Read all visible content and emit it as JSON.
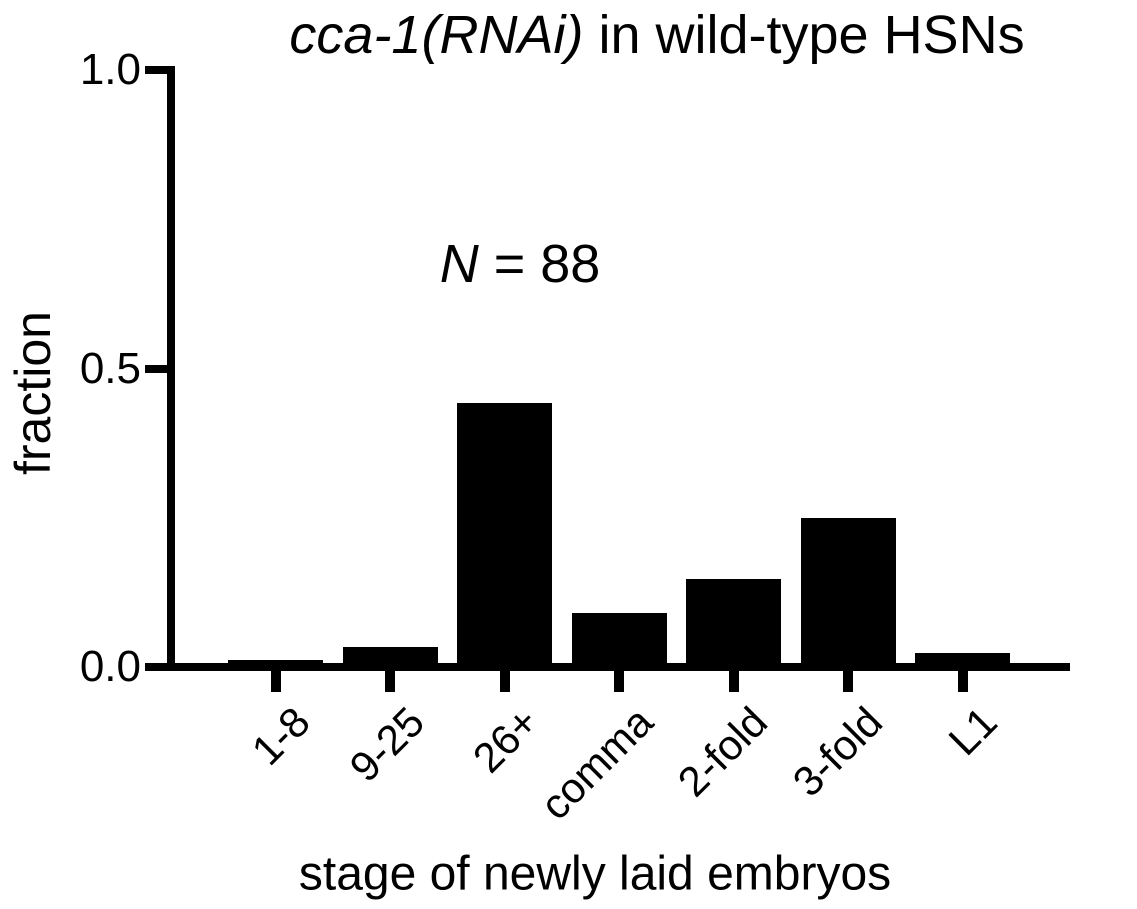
{
  "title": {
    "italic": "cca-1(RNAi)",
    "rest": " in wild-type HSNs"
  },
  "annotation": {
    "italic": "N",
    "rest": " = 88"
  },
  "y_axis": {
    "label": "fraction",
    "tick_labels": [
      "0.0",
      "0.5",
      "1.0"
    ],
    "tick_values": [
      0.0,
      0.5,
      1.0
    ]
  },
  "x_axis": {
    "label": "stage of newly laid embryos"
  },
  "colors": {
    "bar": "#000000",
    "axis": "#000000",
    "background": "#ffffff"
  },
  "chart_data": {
    "type": "bar",
    "title": "cca-1(RNAi) in wild-type HSNs",
    "annotation": "N = 88",
    "categories": [
      "1-8",
      "9-25",
      "26+",
      "comma",
      "2-fold",
      "3-fold",
      "L1"
    ],
    "values": [
      0.011,
      0.034,
      0.443,
      0.091,
      0.148,
      0.25,
      0.023
    ],
    "xlabel": "stage of newly laid embryos",
    "ylabel": "fraction",
    "ylim": [
      0,
      1.0
    ],
    "yticks": [
      0.0,
      0.5,
      1.0
    ],
    "grid": false,
    "legend": false,
    "bar_color": "#000000"
  }
}
